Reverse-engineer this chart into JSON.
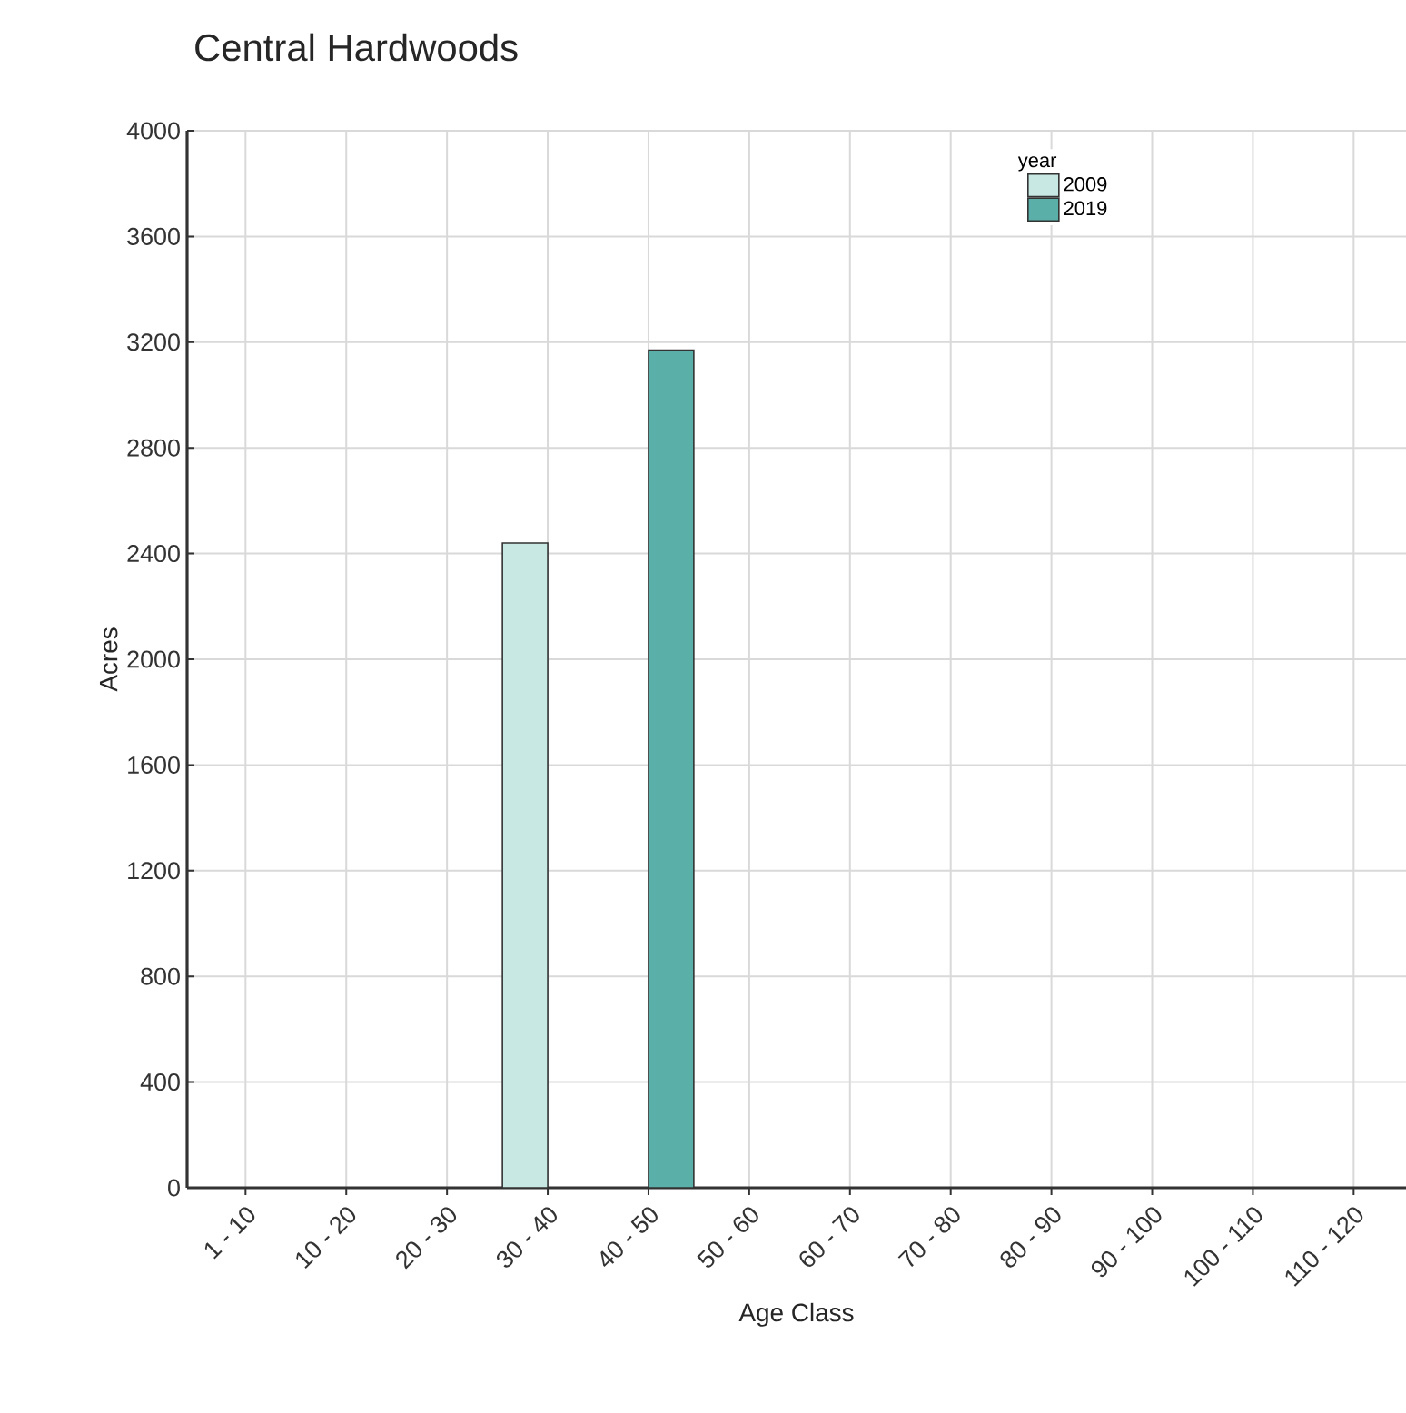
{
  "chart_data": {
    "type": "bar",
    "title": "Central Hardwoods",
    "xlabel": "Age Class",
    "ylabel": "Acres",
    "categories": [
      "1 - 10",
      "10 - 20",
      "20 - 30",
      "30 - 40",
      "40 - 50",
      "50 - 60",
      "60 - 70",
      "70 - 80",
      "80 - 90",
      "90 - 100",
      "100 - 110",
      "110 - 120"
    ],
    "series": [
      {
        "name": "2009",
        "color": "#c8e9e3",
        "values": [
          null,
          null,
          null,
          2440,
          null,
          null,
          null,
          null,
          null,
          null,
          null,
          null
        ]
      },
      {
        "name": "2019",
        "color": "#5ab0a8",
        "values": [
          null,
          null,
          null,
          null,
          3170,
          null,
          null,
          null,
          null,
          null,
          null,
          null
        ]
      }
    ],
    "ylim": [
      0,
      4000
    ],
    "yticks": [
      0,
      400,
      800,
      1200,
      1600,
      2000,
      2400,
      2800,
      3200,
      3600,
      4000
    ],
    "grid": true,
    "legend": "top right",
    "legend_title": "year"
  }
}
